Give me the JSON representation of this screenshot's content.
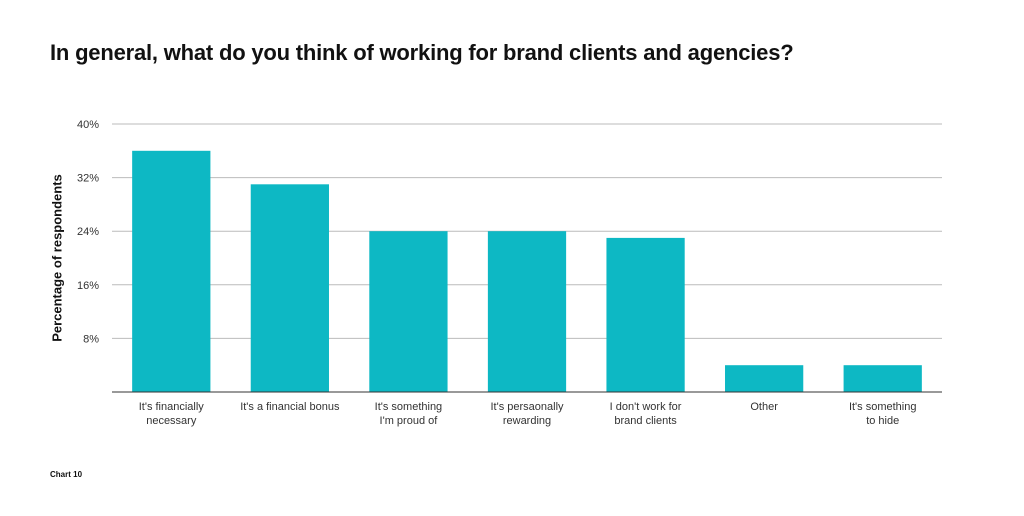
{
  "footnote": "Chart 10",
  "colors": {
    "bar": "#0db8c4",
    "grid": "#bbbbbb",
    "axis": "#333333"
  },
  "chart_data": {
    "type": "bar",
    "title": "In general, what do you think of working for brand clients and agencies?",
    "xlabel": "",
    "ylabel": "Percentage of respondents",
    "ylim": [
      0,
      40
    ],
    "yticks": [
      8,
      16,
      24,
      32,
      40
    ],
    "ytick_labels": [
      "8%",
      "16%",
      "24%",
      "32%",
      "40%"
    ],
    "grid": true,
    "categories": [
      [
        "It's financially",
        "necessary"
      ],
      [
        "It's a financial bonus"
      ],
      [
        "It's something",
        "I'm proud of"
      ],
      [
        "It's persaonally",
        "rewarding"
      ],
      [
        "I don't work for",
        "brand clients"
      ],
      [
        "Other"
      ],
      [
        "It's something",
        "to hide"
      ]
    ],
    "values": [
      36,
      31,
      24,
      24,
      23,
      4,
      4
    ]
  }
}
